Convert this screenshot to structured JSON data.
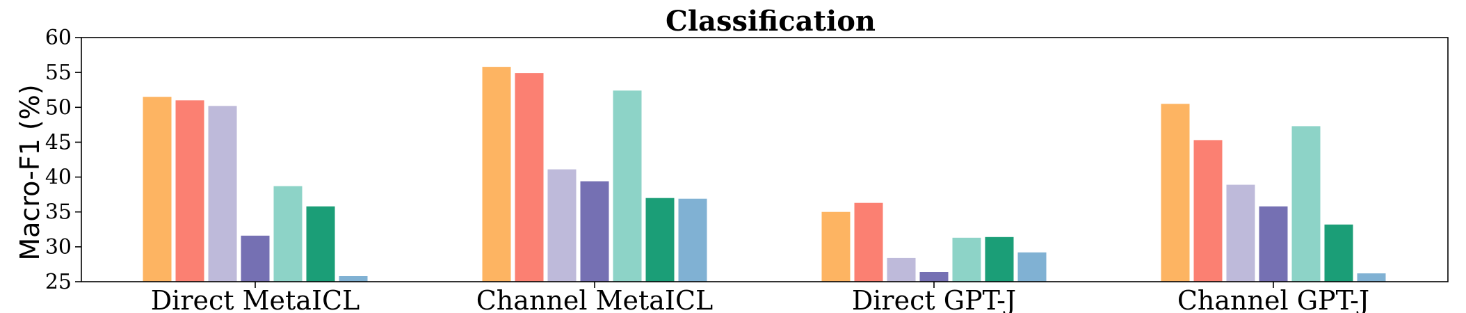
{
  "chart_data": {
    "type": "bar",
    "title": "Classification",
    "xlabel": "",
    "ylabel": "Macro-F1 (%)",
    "ylim": [
      25,
      60
    ],
    "yticks": [
      25,
      30,
      35,
      40,
      45,
      50,
      55,
      60
    ],
    "grid": false,
    "legend": "none",
    "categories": [
      "Direct MetaICL",
      "Channel MetaICL",
      "Direct GPT-J",
      "Channel GPT-J"
    ],
    "series": [
      {
        "color": "#fdb462",
        "values": [
          51.5,
          55.8,
          35.0,
          50.5
        ]
      },
      {
        "color": "#fb8072",
        "values": [
          51.0,
          54.9,
          36.3,
          45.3
        ]
      },
      {
        "color": "#bebada",
        "values": [
          50.2,
          41.1,
          28.4,
          38.9
        ]
      },
      {
        "color": "#7570b3",
        "values": [
          31.6,
          39.4,
          26.4,
          35.8
        ]
      },
      {
        "color": "#8dd3c7",
        "values": [
          38.7,
          52.4,
          31.3,
          47.3
        ]
      },
      {
        "color": "#1b9e77",
        "values": [
          35.8,
          37.0,
          31.4,
          33.2
        ]
      },
      {
        "color": "#80b1d3",
        "values": [
          25.8,
          36.9,
          29.2,
          26.2
        ]
      }
    ]
  }
}
